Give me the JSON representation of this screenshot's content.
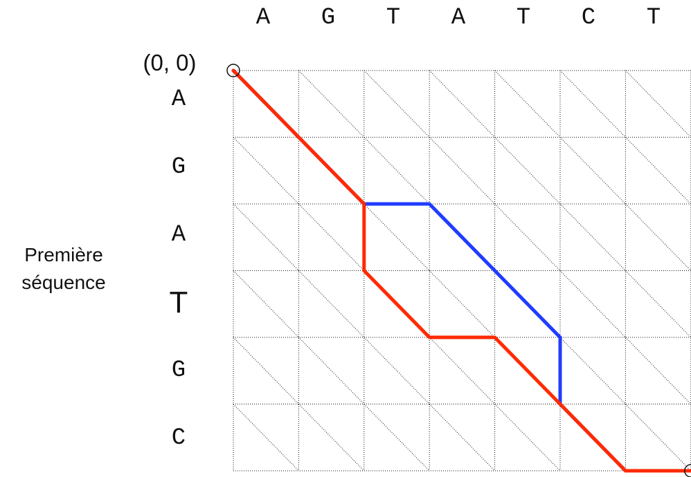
{
  "top_sequence": [
    "A",
    "G",
    "T",
    "A",
    "T",
    "C",
    "T"
  ],
  "left_sequence": [
    "A",
    "G",
    "A",
    "T",
    "G",
    "C"
  ],
  "origin_label": "(0, 0)",
  "left_axis_label": [
    "Première",
    "séquence"
  ],
  "colors": {
    "grid": "#111111",
    "path_blue": "#1f3cff",
    "path_red": "#ff2a00"
  },
  "paths": [
    {
      "color_key": "path_blue",
      "nodes": [
        [
          0,
          0
        ],
        [
          1,
          1
        ],
        [
          2,
          2
        ],
        [
          2,
          3
        ],
        [
          3,
          4
        ],
        [
          4,
          5
        ],
        [
          5,
          5
        ],
        [
          6,
          6
        ],
        [
          6,
          7
        ]
      ]
    },
    {
      "color_key": "path_red",
      "nodes": [
        [
          0,
          0
        ],
        [
          1,
          1
        ],
        [
          2,
          2
        ],
        [
          3,
          2
        ],
        [
          4,
          3
        ],
        [
          4,
          4
        ],
        [
          5,
          5
        ],
        [
          6,
          6
        ],
        [
          6,
          7
        ]
      ]
    }
  ],
  "endpoints": [
    [
      0,
      0
    ],
    [
      6,
      7
    ]
  ]
}
